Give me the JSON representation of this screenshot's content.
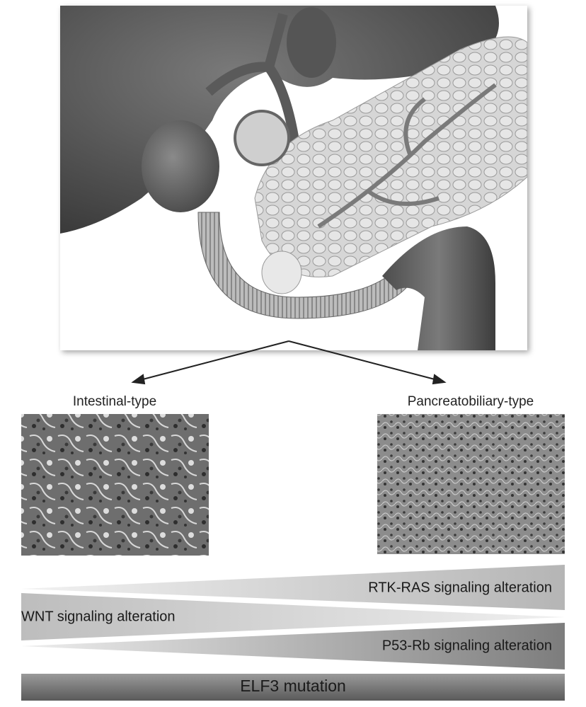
{
  "labels": {
    "left": "Intestinal-type",
    "right": "Pancreatobiliary-type"
  },
  "pathways": {
    "rtk_ras": "RTK-RAS signaling alteration",
    "wnt": "WNT signaling alteration",
    "p53_rb": "P53-Rb signaling alteration",
    "elf3": "ELF3 mutation"
  }
}
